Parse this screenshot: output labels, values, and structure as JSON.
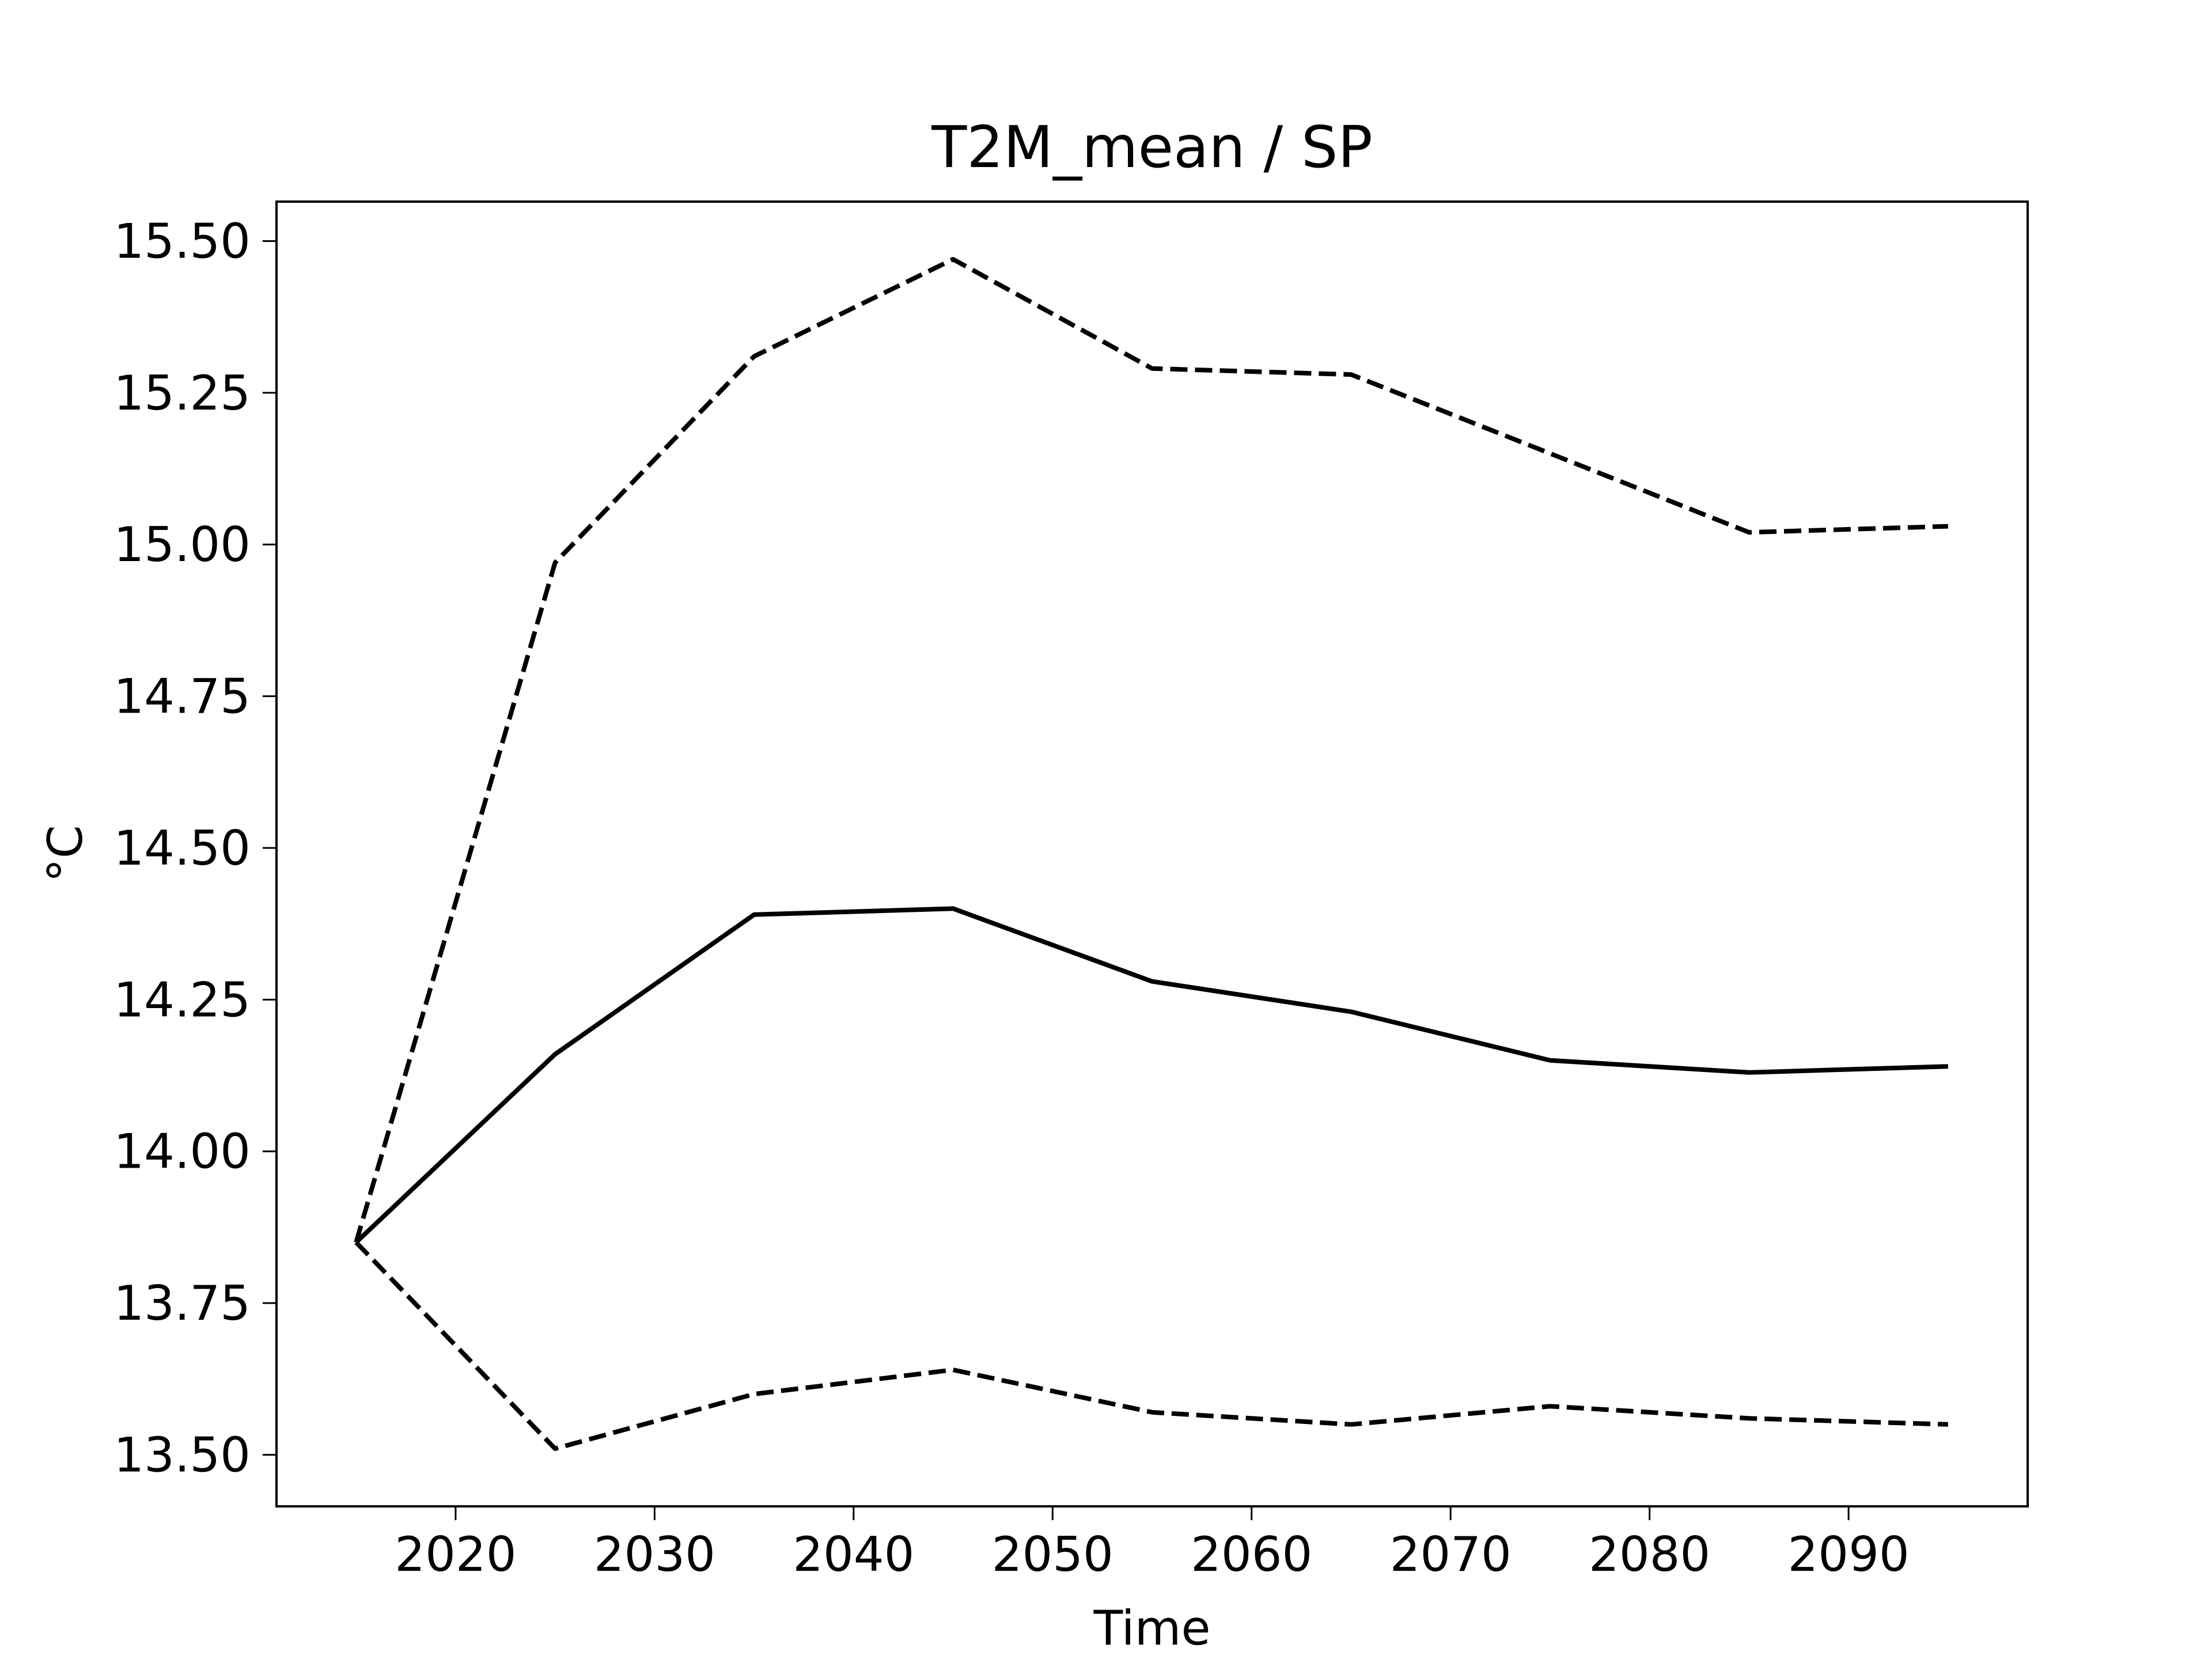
{
  "chart_data": {
    "type": "line",
    "title": "T2M_mean / SP",
    "xlabel": "Time",
    "ylabel": "°C",
    "xlim": [
      2011,
      2099
    ],
    "ylim": [
      13.415,
      15.565
    ],
    "x_ticks": [
      2020,
      2030,
      2040,
      2050,
      2060,
      2070,
      2080,
      2090
    ],
    "x_tick_labels": [
      "2020",
      "2030",
      "2040",
      "2050",
      "2060",
      "2070",
      "2080",
      "2090"
    ],
    "y_ticks": [
      13.5,
      13.75,
      14.0,
      14.25,
      14.5,
      14.75,
      15.0,
      15.25,
      15.5
    ],
    "y_tick_labels": [
      "13.50",
      "13.75",
      "14.00",
      "14.25",
      "14.50",
      "14.75",
      "15.00",
      "15.25",
      "15.50"
    ],
    "grid": false,
    "colors": {
      "line": "#000000",
      "frame": "#000000",
      "background": "#ffffff"
    },
    "x": [
      2015,
      2025,
      2035,
      2045,
      2055,
      2065,
      2075,
      2085,
      2095
    ],
    "series": [
      {
        "style": "dashed",
        "values": [
          13.85,
          14.97,
          15.31,
          15.47,
          15.29,
          15.28,
          15.15,
          15.02,
          15.03
        ]
      },
      {
        "style": "solid",
        "values": [
          13.85,
          14.16,
          14.39,
          14.4,
          14.28,
          14.23,
          14.15,
          14.13,
          14.14
        ]
      },
      {
        "style": "dashed",
        "values": [
          13.85,
          13.51,
          13.6,
          13.64,
          13.57,
          13.55,
          13.58,
          13.56,
          13.55
        ]
      }
    ]
  }
}
